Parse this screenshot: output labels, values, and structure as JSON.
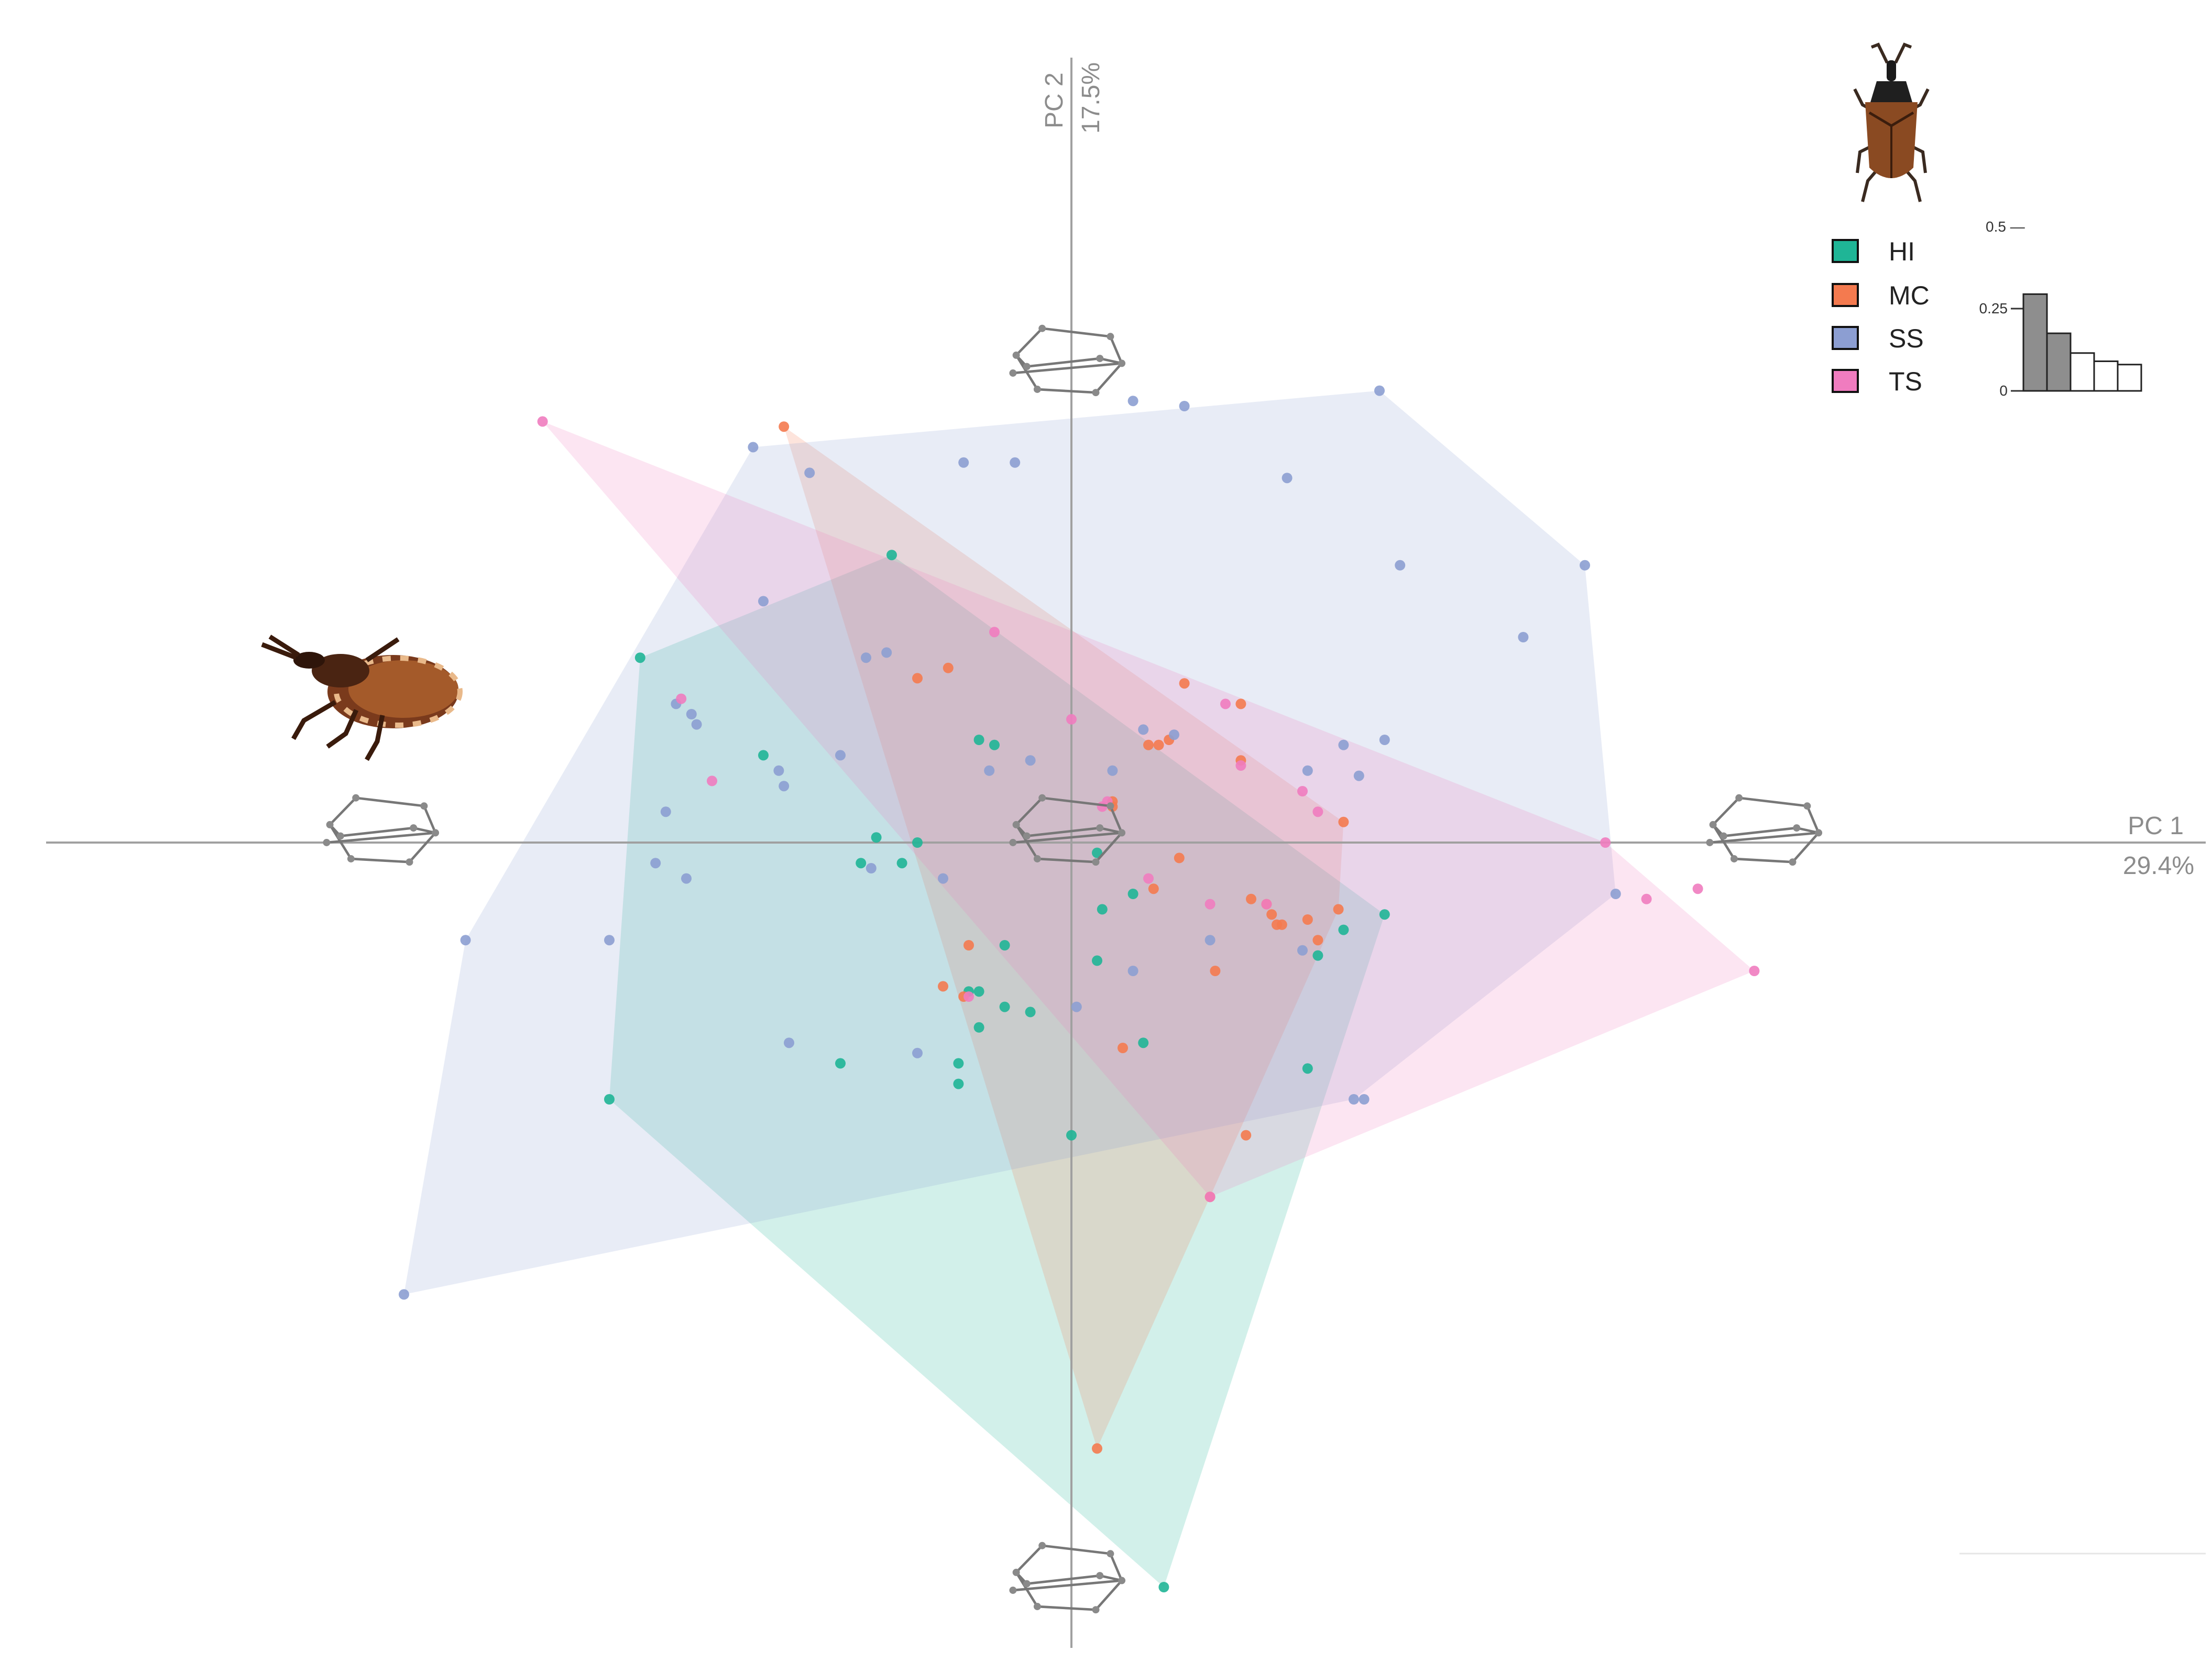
{
  "chart_data": {
    "type": "scatter",
    "x_axis": {
      "label": "PC 1",
      "variance": "29.4%",
      "range": [
        -0.2,
        0.21
      ]
    },
    "y_axis": {
      "label": "PC 2",
      "variance": "17.5%",
      "range": [
        -0.15,
        0.15
      ]
    },
    "legend": {
      "position": "top-right"
    },
    "series": [
      {
        "name": "HI",
        "color": "#1fb596",
        "hull": [
          [
            -0.035,
            0.056
          ],
          [
            0.061,
            -0.014
          ],
          [
            0.018,
            -0.145
          ],
          [
            -0.09,
            -0.05
          ],
          [
            -0.084,
            0.036
          ]
        ],
        "points": [
          [
            -0.035,
            0.056
          ],
          [
            -0.084,
            0.036
          ],
          [
            -0.09,
            -0.05
          ],
          [
            0.018,
            -0.145
          ],
          [
            0.061,
            -0.014
          ],
          [
            -0.045,
            -0.043
          ],
          [
            -0.022,
            -0.043
          ],
          [
            -0.022,
            -0.047
          ],
          [
            0.0,
            -0.057
          ],
          [
            -0.018,
            0.02
          ],
          [
            -0.015,
            0.019
          ],
          [
            -0.03,
            0.0
          ],
          [
            -0.038,
            0.001
          ],
          [
            -0.033,
            -0.004
          ],
          [
            -0.013,
            -0.02
          ],
          [
            0.006,
            -0.013
          ],
          [
            0.012,
            -0.01
          ],
          [
            0.005,
            -0.023
          ],
          [
            -0.018,
            -0.036
          ],
          [
            -0.013,
            -0.032
          ],
          [
            -0.02,
            -0.029
          ],
          [
            -0.008,
            -0.033
          ],
          [
            0.014,
            -0.039
          ],
          [
            0.046,
            -0.044
          ],
          [
            0.053,
            -0.017
          ],
          [
            -0.06,
            0.017
          ],
          [
            0.005,
            -0.002
          ],
          [
            -0.041,
            -0.004
          ],
          [
            -0.018,
            -0.029
          ],
          [
            0.048,
            -0.022
          ]
        ]
      },
      {
        "name": "MC",
        "color": "#f47a4f",
        "hull": [
          [
            -0.056,
            0.081
          ],
          [
            0.053,
            0.004
          ],
          [
            0.052,
            -0.013
          ],
          [
            0.027,
            -0.069
          ],
          [
            0.005,
            -0.118
          ]
        ],
        "points": [
          [
            -0.056,
            0.081
          ],
          [
            0.053,
            0.004
          ],
          [
            0.052,
            -0.013
          ],
          [
            0.027,
            -0.069
          ],
          [
            0.005,
            -0.118
          ],
          [
            -0.03,
            0.032
          ],
          [
            -0.024,
            0.034
          ],
          [
            0.022,
            0.031
          ],
          [
            0.033,
            0.027
          ],
          [
            0.015,
            0.019
          ],
          [
            0.019,
            0.02
          ],
          [
            0.017,
            0.019
          ],
          [
            0.033,
            0.016
          ],
          [
            0.008,
            0.008
          ],
          [
            0.008,
            0.007
          ],
          [
            0.035,
            -0.011
          ],
          [
            0.038,
            -0.012
          ],
          [
            0.041,
            -0.016
          ],
          [
            0.046,
            -0.015
          ],
          [
            0.039,
            -0.014
          ],
          [
            -0.02,
            -0.02
          ],
          [
            0.016,
            -0.009
          ],
          [
            0.048,
            -0.019
          ],
          [
            0.028,
            -0.025
          ],
          [
            -0.021,
            -0.03
          ],
          [
            0.01,
            -0.04
          ],
          [
            0.034,
            -0.057
          ],
          [
            0.021,
            -0.003
          ],
          [
            -0.025,
            -0.028
          ],
          [
            0.04,
            -0.016
          ]
        ]
      },
      {
        "name": "SS",
        "color": "#8c9ed2",
        "hull": [
          [
            0.06,
            0.088
          ],
          [
            0.1,
            0.054
          ],
          [
            0.106,
            -0.01
          ],
          [
            0.055,
            -0.05
          ],
          [
            -0.13,
            -0.088
          ],
          [
            -0.118,
            -0.019
          ],
          [
            -0.062,
            0.077
          ]
        ],
        "points": [
          [
            0.06,
            0.088
          ],
          [
            0.1,
            0.054
          ],
          [
            0.106,
            -0.01
          ],
          [
            0.055,
            -0.05
          ],
          [
            -0.13,
            -0.088
          ],
          [
            -0.118,
            -0.019
          ],
          [
            -0.062,
            0.077
          ],
          [
            0.022,
            0.085
          ],
          [
            0.012,
            0.086
          ],
          [
            -0.021,
            0.074
          ],
          [
            -0.011,
            0.074
          ],
          [
            0.042,
            0.071
          ],
          [
            0.064,
            0.054
          ],
          [
            0.088,
            0.04
          ],
          [
            -0.051,
            0.072
          ],
          [
            -0.06,
            0.047
          ],
          [
            -0.036,
            0.037
          ],
          [
            -0.077,
            0.027
          ],
          [
            -0.074,
            0.025
          ],
          [
            -0.073,
            0.023
          ],
          [
            -0.045,
            0.017
          ],
          [
            -0.057,
            0.014
          ],
          [
            -0.056,
            0.011
          ],
          [
            -0.079,
            0.006
          ],
          [
            -0.081,
            -0.004
          ],
          [
            -0.075,
            -0.007
          ],
          [
            -0.039,
            -0.005
          ],
          [
            -0.025,
            -0.007
          ],
          [
            -0.008,
            0.016
          ],
          [
            -0.016,
            0.014
          ],
          [
            0.014,
            0.022
          ],
          [
            0.02,
            0.021
          ],
          [
            0.046,
            0.014
          ],
          [
            0.056,
            0.013
          ],
          [
            0.053,
            0.019
          ],
          [
            0.061,
            0.02
          ],
          [
            -0.09,
            -0.019
          ],
          [
            -0.055,
            -0.039
          ],
          [
            -0.03,
            -0.041
          ],
          [
            0.001,
            -0.032
          ],
          [
            0.012,
            -0.025
          ],
          [
            0.027,
            -0.019
          ],
          [
            0.045,
            -0.021
          ],
          [
            0.057,
            -0.05
          ],
          [
            -0.04,
            0.036
          ],
          [
            0.008,
            0.014
          ]
        ]
      },
      {
        "name": "TS",
        "color": "#f07cbf",
        "hull": [
          [
            -0.103,
            0.082
          ],
          [
            0.104,
            0.0
          ],
          [
            0.133,
            -0.025
          ],
          [
            0.027,
            -0.069
          ]
        ],
        "points": [
          [
            -0.103,
            0.082
          ],
          [
            0.104,
            0.0
          ],
          [
            0.133,
            -0.025
          ],
          [
            0.027,
            -0.069
          ],
          [
            0.112,
            -0.011
          ],
          [
            0.122,
            -0.009
          ],
          [
            -0.076,
            0.028
          ],
          [
            -0.07,
            0.012
          ],
          [
            0.0,
            0.024
          ],
          [
            0.007,
            0.008
          ],
          [
            0.033,
            0.015
          ],
          [
            0.048,
            0.006
          ],
          [
            0.038,
            -0.012
          ],
          [
            0.027,
            -0.012
          ],
          [
            0.015,
            -0.007
          ],
          [
            -0.015,
            0.041
          ],
          [
            0.03,
            0.027
          ],
          [
            0.006,
            0.007
          ],
          [
            -0.02,
            -0.03
          ],
          [
            0.045,
            0.01
          ]
        ]
      }
    ]
  },
  "legend_labels": [
    "HI",
    "MC",
    "SS",
    "TS"
  ],
  "inset_bar": {
    "ticks": [
      "0.5 —",
      "0.25",
      "0"
    ],
    "values": [
      0.294,
      0.175,
      0.115,
      0.09,
      0.08
    ],
    "colors": [
      "#8e8e8e",
      "#8e8e8e",
      "#ffffff",
      "#ffffff",
      "#ffffff"
    ]
  },
  "icons": [
    "kissing-bug-dorsal-icon",
    "kissing-bug-lateral-icon",
    "wing-landmark-grid-icon"
  ]
}
